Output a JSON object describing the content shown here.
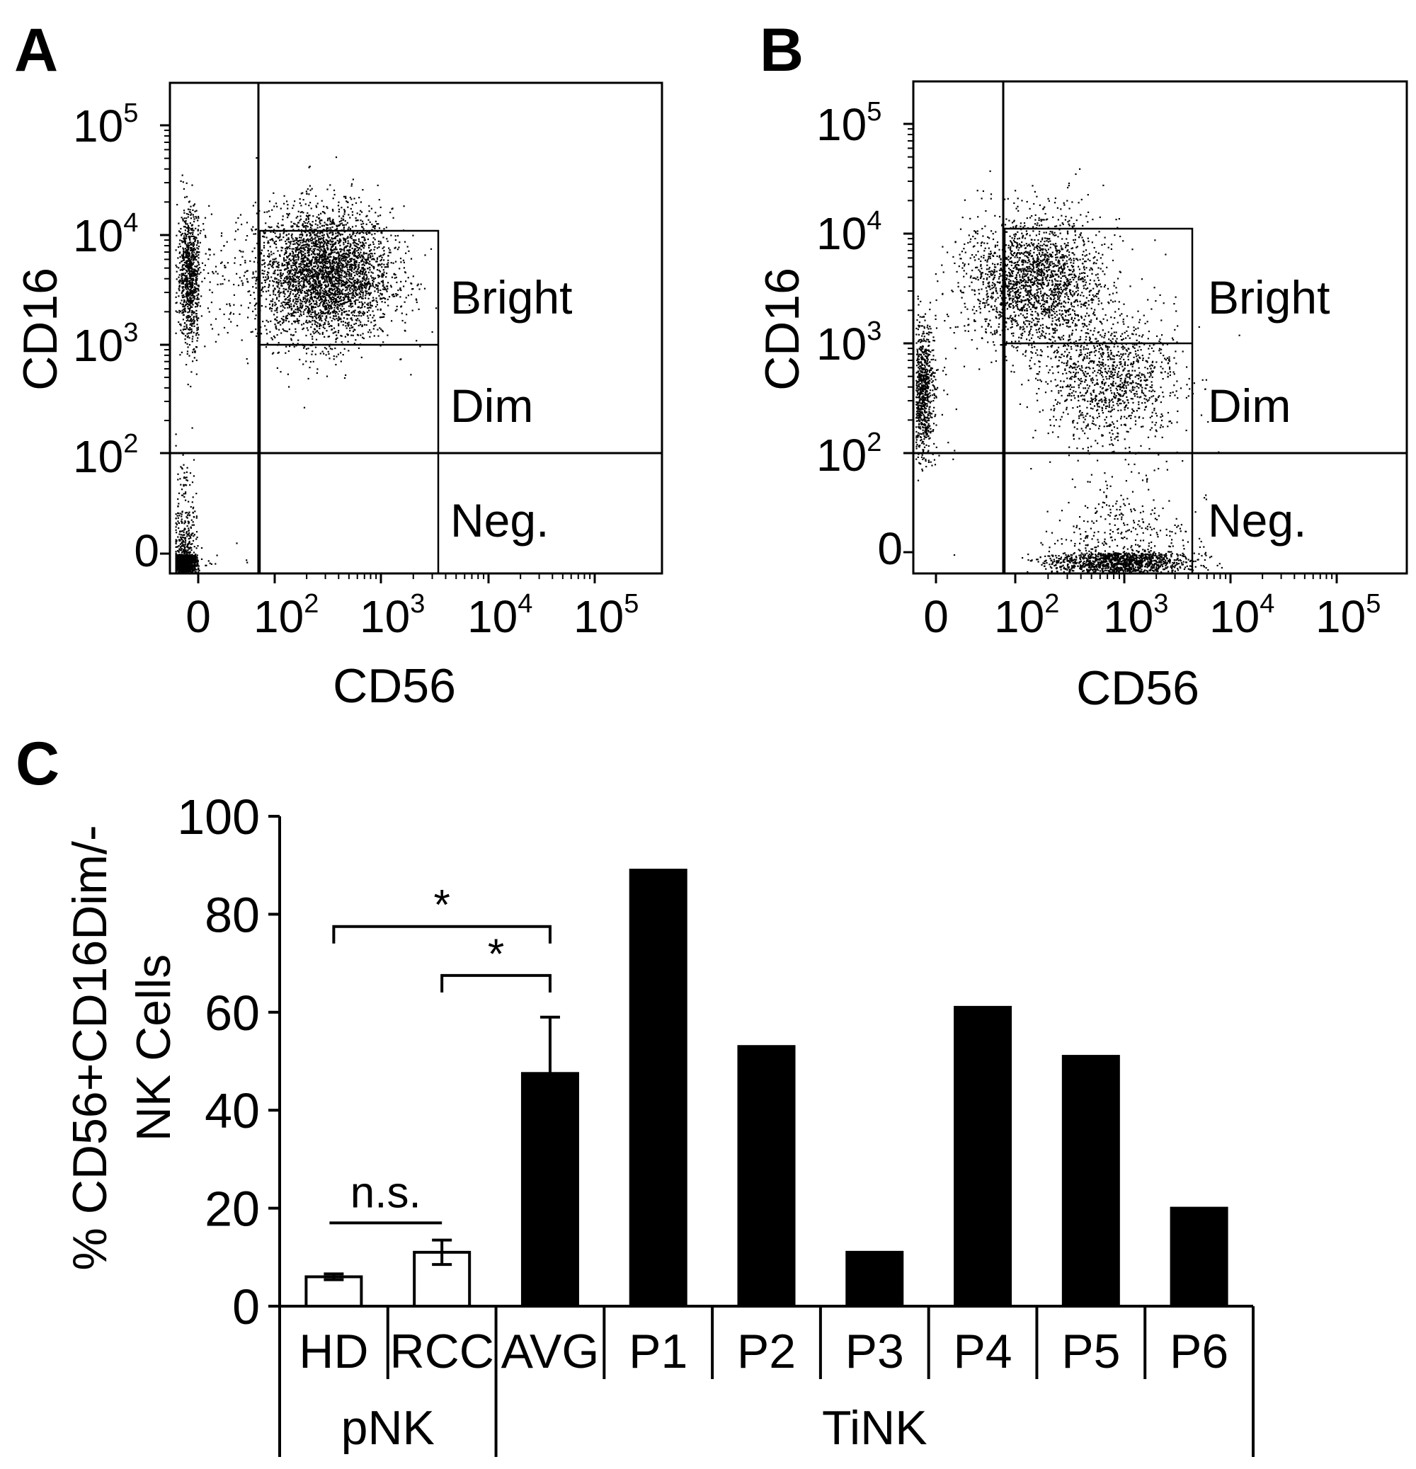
{
  "panels": {
    "A": {
      "label": "A",
      "xlabel": "CD56",
      "ylabel": "CD16",
      "gate_labels": [
        "Bright",
        "Dim",
        "Neg."
      ],
      "x_ticks": [
        "0",
        "10",
        "10",
        "10",
        "10"
      ],
      "x_tick_exps": [
        "",
        "2",
        "3",
        "4",
        "5"
      ],
      "y_ticks": [
        "0",
        "10",
        "10",
        "10",
        "10"
      ],
      "y_tick_exps": [
        "",
        "2",
        "3",
        "4",
        "5"
      ]
    },
    "B": {
      "label": "B",
      "xlabel": "CD56",
      "ylabel": "CD16",
      "gate_labels": [
        "Bright",
        "Dim",
        "Neg."
      ],
      "x_ticks": [
        "0",
        "10",
        "10",
        "10",
        "10"
      ],
      "x_tick_exps": [
        "",
        "2",
        "3",
        "4",
        "5"
      ],
      "y_ticks": [
        "0",
        "10",
        "10",
        "10",
        "10"
      ],
      "y_tick_exps": [
        "",
        "2",
        "3",
        "4",
        "5"
      ]
    },
    "C": {
      "label": "C"
    }
  },
  "chart_data": [
    {
      "type": "scatter",
      "panel": "A",
      "xlabel": "CD56",
      "ylabel": "CD16",
      "xscale": "biexponential",
      "yscale": "biexponential",
      "xlim": [
        0,
        100000
      ],
      "ylim": [
        0,
        100000
      ],
      "x_ticks": [
        "0",
        "10^2",
        "10^3",
        "10^4",
        "10^5"
      ],
      "y_ticks": [
        "0",
        "10^2",
        "10^3",
        "10^4",
        "10^5"
      ],
      "gates": [
        {
          "name": "Bright",
          "cd56": [
            60,
            2500
          ],
          "cd16": [
            1000,
            11000
          ]
        },
        {
          "name": "Dim",
          "cd56": [
            60,
            2500
          ],
          "cd16": [
            100,
            1000
          ]
        },
        {
          "name": "Neg.",
          "cd56": [
            60,
            2500
          ],
          "cd16": [
            0,
            100
          ]
        }
      ],
      "populations": [
        {
          "cd56": 150,
          "cd16": 3500,
          "share": 0.6
        },
        {
          "cd56": 5,
          "cd16": 3500,
          "share": 0.15
        },
        {
          "cd56": 2,
          "cd16": 5,
          "share": 0.25
        }
      ]
    },
    {
      "type": "scatter",
      "panel": "B",
      "xlabel": "CD56",
      "ylabel": "CD16",
      "xscale": "biexponential",
      "yscale": "biexponential",
      "xlim": [
        0,
        100000
      ],
      "ylim": [
        0,
        100000
      ],
      "x_ticks": [
        "0",
        "10^2",
        "10^3",
        "10^4",
        "10^5"
      ],
      "y_ticks": [
        "0",
        "10^2",
        "10^3",
        "10^4",
        "10^5"
      ],
      "gates": [
        {
          "name": "Bright",
          "cd56": [
            60,
            3000
          ],
          "cd16": [
            1000,
            11000
          ]
        },
        {
          "name": "Dim",
          "cd56": [
            60,
            3000
          ],
          "cd16": [
            100,
            1000
          ]
        },
        {
          "name": "Neg.",
          "cd56": [
            60,
            3000
          ],
          "cd16": [
            0,
            100
          ]
        }
      ],
      "populations": [
        {
          "cd56": 80,
          "cd16": 3000,
          "share": 0.35
        },
        {
          "cd56": 400,
          "cd16": 400,
          "share": 0.2
        },
        {
          "cd56": 500,
          "cd16": 5,
          "share": 0.3
        },
        {
          "cd56": 2,
          "cd16": 300,
          "share": 0.15
        }
      ]
    },
    {
      "type": "bar",
      "panel": "C",
      "ylabel": "% CD56+CD16Dim/- NK Cells",
      "ylabel_lines": [
        "% CD56+CD16Dim/-",
        "NK Cells"
      ],
      "ylim": [
        0,
        100
      ],
      "yticks": [
        0,
        20,
        40,
        60,
        80,
        100
      ],
      "categories": [
        "HD",
        "RCC",
        "AVG",
        "P1",
        "P2",
        "P3",
        "P4",
        "P5",
        "P6"
      ],
      "values": [
        6,
        11,
        47.5,
        89,
        53,
        11,
        61,
        51,
        20
      ],
      "errors": [
        0.6,
        2.5,
        11.5,
        null,
        null,
        null,
        null,
        null,
        null
      ],
      "fill": [
        "white",
        "white",
        "black",
        "black",
        "black",
        "black",
        "black",
        "black",
        "black"
      ],
      "groups": [
        {
          "name": "pNK",
          "categories": [
            "HD",
            "RCC"
          ]
        },
        {
          "name": "TiNK",
          "categories": [
            "AVG",
            "P1",
            "P2",
            "P3",
            "P4",
            "P5",
            "P6"
          ]
        }
      ],
      "annotations": [
        {
          "text": "*",
          "from": "HD",
          "to": "AVG",
          "y": 77.5
        },
        {
          "text": "*",
          "from": "RCC",
          "to": "AVG",
          "y": 67.5
        },
        {
          "text": "n.s.",
          "from": "HD",
          "to": "RCC",
          "y": 17
        }
      ]
    }
  ],
  "colors": {
    "ink": "#000000",
    "background": "#ffffff"
  }
}
